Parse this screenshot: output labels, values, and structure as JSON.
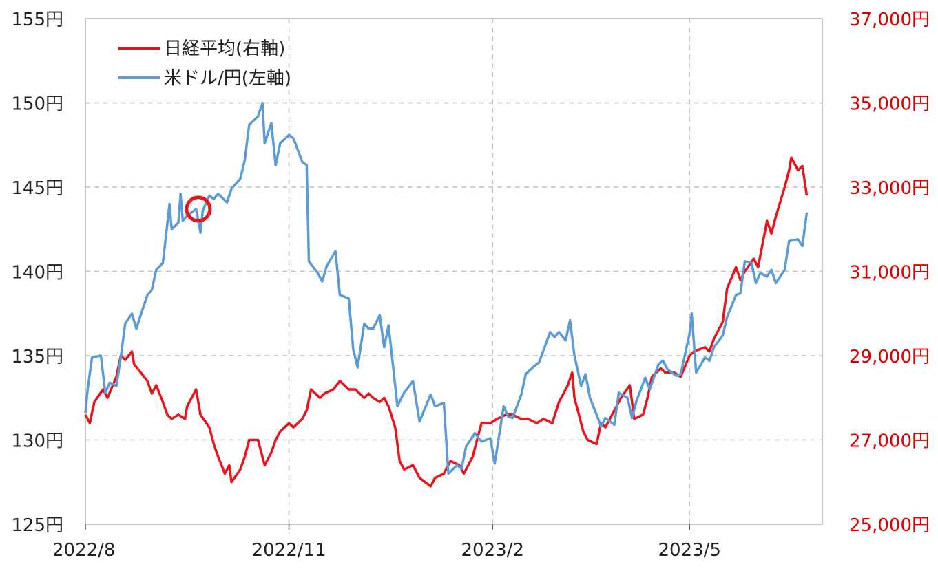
{
  "chart_data": {
    "type": "line",
    "title": "",
    "x_ticks": [
      "2022/8",
      "2022/11",
      "2023/2",
      "2023/5"
    ],
    "x_range": [
      "2022/8",
      "2023/6"
    ],
    "y_left": {
      "label": "",
      "range": [
        125,
        155
      ],
      "ticks": [
        "125円",
        "130円",
        "135円",
        "140円",
        "145円",
        "150円",
        "155円"
      ]
    },
    "y_right": {
      "label": "",
      "range": [
        25000,
        37000
      ],
      "ticks": [
        "25,000円",
        "27,000円",
        "29,000円",
        "31,000円",
        "33,000円",
        "35,000円",
        "37,000円"
      ]
    },
    "grid": true,
    "legend_position": "top-left",
    "annotation": "circle on 米ドル/円 line, late September 2022 (approx. 143.7円)",
    "series": [
      {
        "name": "日経平均(右軸)",
        "axis": "right",
        "color": "#e8141c",
        "points": [
          [
            "2022-08-01",
            27600
          ],
          [
            "2022-08-03",
            27400
          ],
          [
            "2022-08-05",
            27900
          ],
          [
            "2022-08-09",
            28200
          ],
          [
            "2022-08-11",
            28000
          ],
          [
            "2022-08-15",
            28500
          ],
          [
            "2022-08-17",
            29000
          ],
          [
            "2022-08-19",
            28900
          ],
          [
            "2022-08-22",
            29100
          ],
          [
            "2022-08-23",
            28800
          ],
          [
            "2022-08-26",
            28600
          ],
          [
            "2022-08-29",
            28400
          ],
          [
            "2022-08-31",
            28100
          ],
          [
            "2022-09-02",
            28300
          ],
          [
            "2022-09-05",
            27900
          ],
          [
            "2022-09-07",
            27600
          ],
          [
            "2022-09-09",
            27500
          ],
          [
            "2022-09-12",
            27600
          ],
          [
            "2022-09-15",
            27500
          ],
          [
            "2022-09-16",
            27800
          ],
          [
            "2022-09-20",
            28200
          ],
          [
            "2022-09-22",
            27600
          ],
          [
            "2022-09-26",
            27300
          ],
          [
            "2022-09-28",
            26900
          ],
          [
            "2022-09-30",
            26600
          ],
          [
            "2022-10-03",
            26200
          ],
          [
            "2022-10-05",
            26400
          ],
          [
            "2022-10-06",
            26000
          ],
          [
            "2022-10-10",
            26300
          ],
          [
            "2022-10-12",
            26600
          ],
          [
            "2022-10-14",
            27000
          ],
          [
            "2022-10-18",
            27000
          ],
          [
            "2022-10-20",
            26600
          ],
          [
            "2022-10-21",
            26400
          ],
          [
            "2022-10-24",
            26700
          ],
          [
            "2022-10-26",
            27000
          ],
          [
            "2022-10-28",
            27200
          ],
          [
            "2022-11-01",
            27400
          ],
          [
            "2022-11-03",
            27300
          ],
          [
            "2022-11-07",
            27500
          ],
          [
            "2022-11-09",
            27700
          ],
          [
            "2022-11-11",
            28200
          ],
          [
            "2022-11-15",
            28000
          ],
          [
            "2022-11-17",
            28100
          ],
          [
            "2022-11-21",
            28200
          ],
          [
            "2022-11-24",
            28400
          ],
          [
            "2022-11-28",
            28200
          ],
          [
            "2022-12-01",
            28200
          ],
          [
            "2022-12-05",
            28000
          ],
          [
            "2022-12-07",
            28100
          ],
          [
            "2022-12-09",
            28000
          ],
          [
            "2022-12-12",
            27900
          ],
          [
            "2022-12-14",
            28000
          ],
          [
            "2022-12-16",
            27800
          ],
          [
            "2022-12-19",
            27300
          ],
          [
            "2022-12-21",
            26500
          ],
          [
            "2022-12-23",
            26300
          ],
          [
            "2022-12-27",
            26400
          ],
          [
            "2022-12-30",
            26100
          ],
          [
            "2023-01-04",
            25900
          ],
          [
            "2023-01-06",
            26100
          ],
          [
            "2023-01-10",
            26200
          ],
          [
            "2023-01-13",
            26500
          ],
          [
            "2023-01-17",
            26400
          ],
          [
            "2023-01-19",
            26200
          ],
          [
            "2023-01-23",
            26600
          ],
          [
            "2023-01-25",
            27000
          ],
          [
            "2023-01-27",
            27400
          ],
          [
            "2023-01-31",
            27400
          ],
          [
            "2023-02-03",
            27500
          ],
          [
            "2023-02-07",
            27600
          ],
          [
            "2023-02-10",
            27600
          ],
          [
            "2023-02-14",
            27500
          ],
          [
            "2023-02-17",
            27500
          ],
          [
            "2023-02-21",
            27400
          ],
          [
            "2023-02-24",
            27500
          ],
          [
            "2023-02-28",
            27400
          ],
          [
            "2023-03-03",
            27900
          ],
          [
            "2023-03-07",
            28300
          ],
          [
            "2023-03-09",
            28600
          ],
          [
            "2023-03-10",
            28000
          ],
          [
            "2023-03-14",
            27200
          ],
          [
            "2023-03-16",
            27000
          ],
          [
            "2023-03-20",
            26900
          ],
          [
            "2023-03-22",
            27400
          ],
          [
            "2023-03-24",
            27300
          ],
          [
            "2023-03-28",
            27700
          ],
          [
            "2023-03-31",
            28000
          ],
          [
            "2023-04-04",
            28300
          ],
          [
            "2023-04-06",
            27500
          ],
          [
            "2023-04-10",
            27600
          ],
          [
            "2023-04-12",
            28000
          ],
          [
            "2023-04-14",
            28500
          ],
          [
            "2023-04-18",
            28700
          ],
          [
            "2023-04-20",
            28600
          ],
          [
            "2023-04-24",
            28600
          ],
          [
            "2023-04-27",
            28500
          ],
          [
            "2023-05-01",
            29000
          ],
          [
            "2023-05-03",
            29100
          ],
          [
            "2023-05-08",
            29200
          ],
          [
            "2023-05-10",
            29100
          ],
          [
            "2023-05-12",
            29400
          ],
          [
            "2023-05-16",
            29800
          ],
          [
            "2023-05-18",
            30600
          ],
          [
            "2023-05-22",
            31100
          ],
          [
            "2023-05-24",
            30800
          ],
          [
            "2023-05-26",
            31000
          ],
          [
            "2023-05-30",
            31300
          ],
          [
            "2023-06-01",
            31100
          ],
          [
            "2023-06-05",
            32200
          ],
          [
            "2023-06-07",
            31900
          ],
          [
            "2023-06-09",
            32300
          ],
          [
            "2023-06-13",
            33000
          ],
          [
            "2023-06-15",
            33400
          ],
          [
            "2023-06-16",
            33700
          ],
          [
            "2023-06-19",
            33400
          ],
          [
            "2023-06-21",
            33500
          ],
          [
            "2023-06-23",
            32800
          ]
        ]
      },
      {
        "name": "米ドル/円(左軸)",
        "axis": "left",
        "color": "#5b9bd5",
        "points": [
          [
            "2022-08-01",
            131.6
          ],
          [
            "2022-08-02",
            133.0
          ],
          [
            "2022-08-04",
            134.9
          ],
          [
            "2022-08-08",
            135.0
          ],
          [
            "2022-08-10",
            132.8
          ],
          [
            "2022-08-12",
            133.4
          ],
          [
            "2022-08-15",
            133.2
          ],
          [
            "2022-08-17",
            134.9
          ],
          [
            "2022-08-19",
            136.9
          ],
          [
            "2022-08-22",
            137.5
          ],
          [
            "2022-08-24",
            136.6
          ],
          [
            "2022-08-26",
            137.4
          ],
          [
            "2022-08-29",
            138.6
          ],
          [
            "2022-08-31",
            138.9
          ],
          [
            "2022-09-02",
            140.1
          ],
          [
            "2022-09-05",
            140.5
          ],
          [
            "2022-09-07",
            142.8
          ],
          [
            "2022-09-08",
            144.0
          ],
          [
            "2022-09-09",
            142.5
          ],
          [
            "2022-09-12",
            142.9
          ],
          [
            "2022-09-13",
            144.6
          ],
          [
            "2022-09-14",
            143.0
          ],
          [
            "2022-09-16",
            143.3
          ],
          [
            "2022-09-20",
            143.7
          ],
          [
            "2022-09-22",
            142.3
          ],
          [
            "2022-09-23",
            143.6
          ],
          [
            "2022-09-26",
            144.5
          ],
          [
            "2022-09-28",
            144.3
          ],
          [
            "2022-09-30",
            144.6
          ],
          [
            "2022-10-04",
            144.1
          ],
          [
            "2022-10-06",
            144.9
          ],
          [
            "2022-10-10",
            145.5
          ],
          [
            "2022-10-12",
            146.6
          ],
          [
            "2022-10-14",
            148.7
          ],
          [
            "2022-10-18",
            149.2
          ],
          [
            "2022-10-20",
            150.0
          ],
          [
            "2022-10-21",
            147.6
          ],
          [
            "2022-10-24",
            148.8
          ],
          [
            "2022-10-26",
            146.3
          ],
          [
            "2022-10-28",
            147.6
          ],
          [
            "2022-11-01",
            148.1
          ],
          [
            "2022-11-03",
            147.9
          ],
          [
            "2022-11-07",
            146.5
          ],
          [
            "2022-11-09",
            146.3
          ],
          [
            "2022-11-10",
            140.6
          ],
          [
            "2022-11-14",
            139.9
          ],
          [
            "2022-11-16",
            139.4
          ],
          [
            "2022-11-18",
            140.3
          ],
          [
            "2022-11-22",
            141.2
          ],
          [
            "2022-11-24",
            138.6
          ],
          [
            "2022-11-28",
            138.4
          ],
          [
            "2022-11-30",
            135.4
          ],
          [
            "2022-12-02",
            134.3
          ],
          [
            "2022-12-05",
            136.9
          ],
          [
            "2022-12-07",
            136.6
          ],
          [
            "2022-12-09",
            136.6
          ],
          [
            "2022-12-12",
            137.4
          ],
          [
            "2022-12-14",
            135.5
          ],
          [
            "2022-12-16",
            136.8
          ],
          [
            "2022-12-20",
            132.0
          ],
          [
            "2022-12-23",
            132.8
          ],
          [
            "2022-12-27",
            133.5
          ],
          [
            "2022-12-30",
            131.1
          ],
          [
            "2023-01-04",
            132.7
          ],
          [
            "2023-01-06",
            132.0
          ],
          [
            "2023-01-10",
            132.2
          ],
          [
            "2023-01-12",
            128.0
          ],
          [
            "2023-01-16",
            128.5
          ],
          [
            "2023-01-18",
            128.3
          ],
          [
            "2023-01-20",
            129.6
          ],
          [
            "2023-01-24",
            130.4
          ],
          [
            "2023-01-27",
            129.9
          ],
          [
            "2023-01-31",
            130.1
          ],
          [
            "2023-02-02",
            128.6
          ],
          [
            "2023-02-06",
            132.0
          ],
          [
            "2023-02-08",
            131.4
          ],
          [
            "2023-02-10",
            131.3
          ],
          [
            "2023-02-14",
            132.7
          ],
          [
            "2023-02-16",
            133.9
          ],
          [
            "2023-02-20",
            134.4
          ],
          [
            "2023-02-22",
            134.6
          ],
          [
            "2023-02-27",
            136.4
          ],
          [
            "2023-03-01",
            136.1
          ],
          [
            "2023-03-03",
            136.4
          ],
          [
            "2023-03-06",
            135.9
          ],
          [
            "2023-03-08",
            137.1
          ],
          [
            "2023-03-10",
            135.0
          ],
          [
            "2023-03-13",
            133.2
          ],
          [
            "2023-03-15",
            133.9
          ],
          [
            "2023-03-17",
            132.5
          ],
          [
            "2023-03-20",
            131.5
          ],
          [
            "2023-03-22",
            130.8
          ],
          [
            "2023-03-24",
            131.3
          ],
          [
            "2023-03-28",
            130.9
          ],
          [
            "2023-03-30",
            132.8
          ],
          [
            "2023-04-03",
            132.5
          ],
          [
            "2023-04-05",
            131.3
          ],
          [
            "2023-04-07",
            132.3
          ],
          [
            "2023-04-11",
            133.7
          ],
          [
            "2023-04-13",
            133.0
          ],
          [
            "2023-04-17",
            134.5
          ],
          [
            "2023-04-19",
            134.7
          ],
          [
            "2023-04-21",
            134.2
          ],
          [
            "2023-04-25",
            133.8
          ],
          [
            "2023-04-27",
            133.9
          ],
          [
            "2023-05-01",
            136.3
          ],
          [
            "2023-05-02",
            137.5
          ],
          [
            "2023-05-04",
            134.0
          ],
          [
            "2023-05-08",
            134.9
          ],
          [
            "2023-05-10",
            134.7
          ],
          [
            "2023-05-12",
            135.5
          ],
          [
            "2023-05-16",
            136.2
          ],
          [
            "2023-05-18",
            137.3
          ],
          [
            "2023-05-22",
            138.6
          ],
          [
            "2023-05-24",
            138.7
          ],
          [
            "2023-05-26",
            140.6
          ],
          [
            "2023-05-29",
            140.5
          ],
          [
            "2023-05-31",
            139.3
          ],
          [
            "2023-06-02",
            139.9
          ],
          [
            "2023-06-05",
            139.7
          ],
          [
            "2023-06-07",
            140.1
          ],
          [
            "2023-06-09",
            139.3
          ],
          [
            "2023-06-13",
            140.1
          ],
          [
            "2023-06-15",
            141.8
          ],
          [
            "2023-06-19",
            141.9
          ],
          [
            "2023-06-21",
            141.5
          ],
          [
            "2023-06-23",
            143.5
          ]
        ]
      }
    ]
  }
}
